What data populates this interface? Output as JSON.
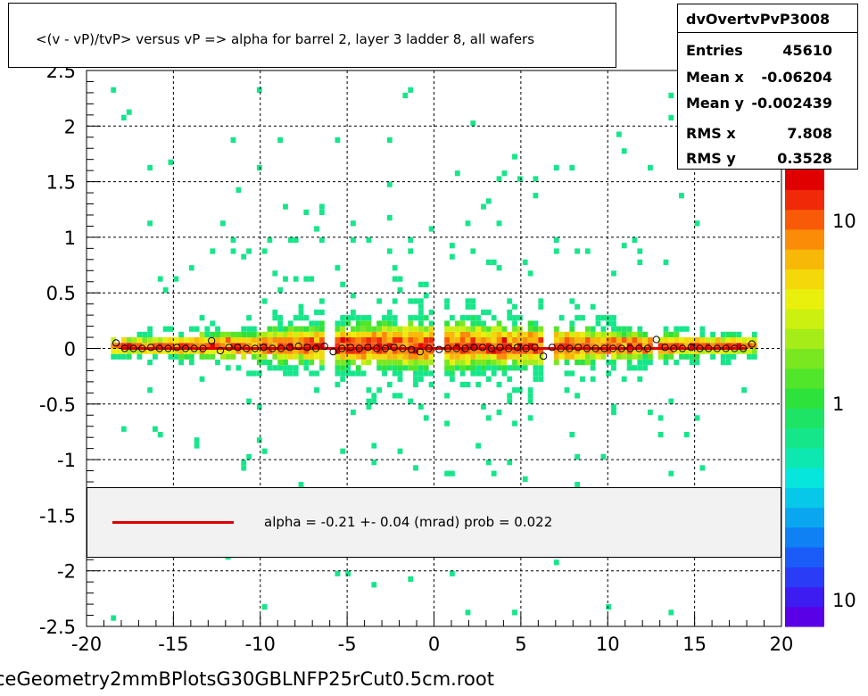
{
  "chart_data": {
    "type": "heatmap",
    "title": "<(v - vP)/tvP> versus   vP => alpha for barrel 2, layer 3 ladder 8, all wafers",
    "xlim": [
      -20,
      20
    ],
    "ylim": [
      -2.5,
      2.5
    ],
    "x_ticks": [
      "-20",
      "-15",
      "-10",
      "-5",
      "0",
      "5",
      "10",
      "15",
      "20"
    ],
    "y_ticks": [
      "-2.5",
      "-2",
      "-1.5",
      "-1",
      "-0.5",
      "0",
      "0.5",
      "1",
      "1.5",
      "2",
      "2.5"
    ],
    "grid": true,
    "z_scale": "log",
    "z_ticks": [
      "10",
      "1",
      "10"
    ],
    "profile_points": {
      "x": [
        -18.3,
        -17.8,
        -17.3,
        -16.8,
        -16.3,
        -15.8,
        -15.3,
        -14.8,
        -14.3,
        -13.8,
        -13.3,
        -12.8,
        -12.3,
        -11.8,
        -11.3,
        -10.8,
        -10.3,
        -9.8,
        -9.3,
        -8.8,
        -8.3,
        -7.8,
        -7.3,
        -6.8,
        -6.3,
        -5.8,
        -5.3,
        -4.8,
        -4.3,
        -3.8,
        -3.3,
        -2.8,
        -2.3,
        -1.8,
        -1.3,
        -0.8,
        -0.3,
        0.3,
        0.8,
        1.3,
        1.8,
        2.3,
        2.8,
        3.3,
        3.8,
        4.3,
        4.8,
        5.3,
        5.8,
        6.3,
        6.8,
        7.3,
        7.8,
        8.3,
        8.8,
        9.3,
        9.8,
        10.3,
        10.8,
        11.3,
        11.8,
        12.3,
        12.8,
        13.3,
        13.8,
        14.3,
        14.8,
        15.3,
        15.8,
        16.3,
        16.8,
        17.3,
        17.8,
        18.3
      ],
      "y": [
        0.05,
        0.0,
        0.0,
        0.0,
        0.01,
        0.0,
        0.0,
        0.01,
        0.0,
        0.0,
        0.0,
        0.07,
        -0.02,
        0.01,
        0.01,
        0.0,
        0.0,
        0.01,
        0.0,
        0.0,
        0.01,
        0.02,
        0.01,
        0.0,
        0.02,
        -0.03,
        0.0,
        0.01,
        0.0,
        0.01,
        0.0,
        0.0,
        0.01,
        0.0,
        -0.01,
        -0.03,
        0.0,
        -0.01,
        0.0,
        0.0,
        0.0,
        0.01,
        0.01,
        0.0,
        0.01,
        0.0,
        0.01,
        0.0,
        0.01,
        -0.07,
        0.01,
        0.0,
        0.0,
        0.01,
        0.0,
        0.0,
        0.0,
        0.0,
        0.0,
        0.0,
        0.0,
        0.0,
        0.08,
        0.01,
        0.0,
        0.0,
        0.01,
        0.0,
        0.0,
        0.0,
        0.0,
        0.0,
        0.0,
        0.04
      ]
    },
    "fit_line": {
      "x": [
        -18,
        18
      ],
      "y": [
        0.0,
        0.0
      ]
    },
    "stats": {
      "name": "dvOvertvPvP3008",
      "rows": [
        {
          "key": "Entries",
          "value": "45610"
        },
        {
          "key": "Mean x",
          "value": "-0.06204"
        },
        {
          "key": "Mean y",
          "value": "-0.002439"
        },
        {
          "key": "RMS x",
          "value": "7.808"
        },
        {
          "key": "RMS y",
          "value": "0.3528"
        }
      ]
    },
    "legend": {
      "label": "alpha =   -0.21 +-  0.04 (mrad) prob = 0.022",
      "color": "#dd0000"
    }
  },
  "footer": "ceGeometry2mmBPlotsG30GBLNFP25rCut0.5cm.root"
}
